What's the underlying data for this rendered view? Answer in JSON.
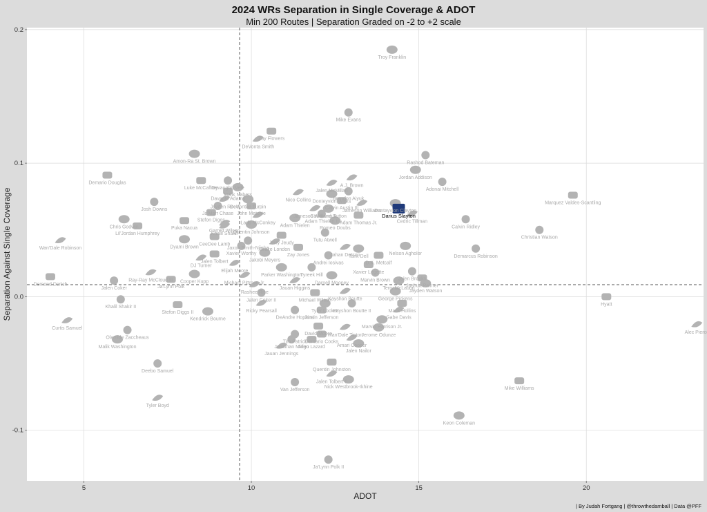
{
  "chart_data": {
    "type": "scatter",
    "title": "2024 WRs Separation in Single Coverage & ADOT",
    "subtitle": "Min 200 Routes | Separation Graded on -2 to +2 scale",
    "xlabel": "ADOT",
    "ylabel": "Separation Against Single Coverage",
    "caption": "| By Judah Fortgang | @throwthedamball | Data @PFF",
    "xlim": [
      3.3,
      23.5
    ],
    "ylim": [
      -0.138,
      0.2015
    ],
    "x_ticks": [
      {
        "value": 5,
        "label": "5"
      },
      {
        "value": 10,
        "label": "10"
      },
      {
        "value": 15,
        "label": "15"
      },
      {
        "value": 20,
        "label": "20"
      }
    ],
    "y_ticks": [
      {
        "value": 0.2,
        "label": "0.2"
      },
      {
        "value": 0.1,
        "label": "0.1"
      },
      {
        "value": 0.0,
        "label": "0.0"
      },
      {
        "value": -0.1,
        "label": "-0.1"
      }
    ],
    "reference_lines": {
      "x": 9.65,
      "y": 0.009
    },
    "grid": true,
    "colors": {
      "point": "#b3b3b3",
      "label": "#a9a9a9",
      "highlight": "#1f3a7a",
      "highlight_label": "#000000"
    },
    "points": [
      {
        "name": "Troy Franklin",
        "x": 14.2,
        "y": 0.185
      },
      {
        "name": "Mike Evans",
        "x": 12.9,
        "y": 0.138
      },
      {
        "name": "Zay Flowers",
        "x": 10.6,
        "y": 0.124
      },
      {
        "name": "DeVonta Smith",
        "x": 10.2,
        "y": 0.118
      },
      {
        "name": "Amon-Ra St. Brown",
        "x": 8.3,
        "y": 0.107
      },
      {
        "name": "Rashod Bateman",
        "x": 15.2,
        "y": 0.106
      },
      {
        "name": "Demario Douglas",
        "x": 5.7,
        "y": 0.091
      },
      {
        "name": "A.J. Brown",
        "x": 13.0,
        "y": 0.089
      },
      {
        "name": "Jordan Addison",
        "x": 14.9,
        "y": 0.095
      },
      {
        "name": "Devaughn Vele",
        "x": 9.3,
        "y": 0.087
      },
      {
        "name": "Luke McCaffrey",
        "x": 8.5,
        "y": 0.087
      },
      {
        "name": "Jalen McMillan",
        "x": 12.4,
        "y": 0.085
      },
      {
        "name": "Malik Nabers",
        "x": 9.6,
        "y": 0.082
      },
      {
        "name": "Adonai Mitchell",
        "x": 15.7,
        "y": 0.086
      },
      {
        "name": "Davante Adams",
        "x": 9.3,
        "y": 0.079
      },
      {
        "name": "Nico Collins",
        "x": 11.4,
        "y": 0.078
      },
      {
        "name": "Donteyvion Wicks",
        "x": 12.4,
        "y": 0.077
      },
      {
        "name": "Brandon Aiyuk",
        "x": 12.9,
        "y": 0.079
      },
      {
        "name": "Marquez Valdes-Scantling",
        "x": 19.6,
        "y": 0.076
      },
      {
        "name": "Jayden Reed",
        "x": 9.2,
        "y": 0.073
      },
      {
        "name": "DeVontae Turpin",
        "x": 9.9,
        "y": 0.073
      },
      {
        "name": "Josh Downs",
        "x": 7.1,
        "y": 0.071
      },
      {
        "name": "Calvin Austin III",
        "x": 12.7,
        "y": 0.072
      },
      {
        "name": "Jameson Williams",
        "x": 13.3,
        "y": 0.07
      },
      {
        "name": "Dontayvion Clayton",
        "x": 14.3,
        "y": 0.07
      },
      {
        "name": "Ja'Marr Chase",
        "x": 9.0,
        "y": 0.068
      },
      {
        "name": "John Metchie",
        "x": 10.0,
        "y": 0.068
      },
      {
        "name": "Jameson Williams II",
        "x": 11.9,
        "y": 0.066
      },
      {
        "name": "Courtland Sutton",
        "x": 12.3,
        "y": 0.066
      },
      {
        "name": "Darius Slayton",
        "x": 14.4,
        "y": 0.066,
        "highlight": true
      },
      {
        "name": "Stefon Diggs",
        "x": 8.8,
        "y": 0.063
      },
      {
        "name": "Ladd McConkey",
        "x": 10.2,
        "y": 0.061
      },
      {
        "name": "Adam Thielen",
        "x": 11.3,
        "y": 0.059
      },
      {
        "name": "Adam Thielen II",
        "x": 12.1,
        "y": 0.062
      },
      {
        "name": "Adam Thomas Jr.",
        "x": 13.2,
        "y": 0.061
      },
      {
        "name": "Cedric Tillman",
        "x": 14.8,
        "y": 0.062
      },
      {
        "name": "Chris Godwin",
        "x": 6.2,
        "y": 0.058
      },
      {
        "name": "Calvin Ridley",
        "x": 16.4,
        "y": 0.058
      },
      {
        "name": "Puka Nacua",
        "x": 8.0,
        "y": 0.057
      },
      {
        "name": "Garrett Wilson",
        "x": 9.2,
        "y": 0.055
      },
      {
        "name": "Romeo Doubs",
        "x": 12.5,
        "y": 0.057
      },
      {
        "name": "Christian Watson",
        "x": 18.6,
        "y": 0.05
      },
      {
        "name": "Lil'Jordan Humphrey",
        "x": 6.6,
        "y": 0.053
      },
      {
        "name": "Khalil Shakir",
        "x": 9.2,
        "y": 0.053
      },
      {
        "name": "Quentin Johnson",
        "x": 10.0,
        "y": 0.054
      },
      {
        "name": "Tutu Atwell",
        "x": 12.2,
        "y": 0.048
      },
      {
        "name": "CeeDee Lamb",
        "x": 8.9,
        "y": 0.045
      },
      {
        "name": "Wan'Dale Robinson",
        "x": 4.3,
        "y": 0.042
      },
      {
        "name": "Dyami Brown",
        "x": 8.0,
        "y": 0.043
      },
      {
        "name": "Jaxon Smith-Njigba",
        "x": 9.9,
        "y": 0.042
      },
      {
        "name": "Jerry Jeudy",
        "x": 10.9,
        "y": 0.046
      },
      {
        "name": "Drake London",
        "x": 10.7,
        "y": 0.041
      },
      {
        "name": "Nelson Agholor",
        "x": 14.6,
        "y": 0.038
      },
      {
        "name": "Xavier Worthy",
        "x": 9.7,
        "y": 0.038
      },
      {
        "name": "Zay Jones",
        "x": 11.4,
        "y": 0.037
      },
      {
        "name": "Jahan Dotson",
        "x": 12.8,
        "y": 0.037
      },
      {
        "name": "Tank Dell",
        "x": 13.2,
        "y": 0.036
      },
      {
        "name": "Demarcus Robinson",
        "x": 16.7,
        "y": 0.036
      },
      {
        "name": "Jalen Tolbert",
        "x": 8.9,
        "y": 0.032
      },
      {
        "name": "DJ Turner",
        "x": 8.5,
        "y": 0.029
      },
      {
        "name": "Jakobi Meyers",
        "x": 10.4,
        "y": 0.033
      },
      {
        "name": "Andrei Iosivas",
        "x": 12.3,
        "y": 0.031
      },
      {
        "name": "D.K. Metcalf",
        "x": 13.8,
        "y": 0.031
      },
      {
        "name": "Elijah Moore",
        "x": 9.5,
        "y": 0.025
      },
      {
        "name": "Parker Washington",
        "x": 10.9,
        "y": 0.022
      },
      {
        "name": "Tyreek Hill",
        "x": 11.8,
        "y": 0.022
      },
      {
        "name": "Xavier Legette",
        "x": 13.5,
        "y": 0.024
      },
      {
        "name": "Ray-Ray McCloud III",
        "x": 7.0,
        "y": 0.018
      },
      {
        "name": "Cooper Kupp",
        "x": 8.3,
        "y": 0.017
      },
      {
        "name": "Jalen Brooks",
        "x": 14.8,
        "y": 0.019
      },
      {
        "name": "Demond Dortch",
        "x": 4.0,
        "y": 0.015
      },
      {
        "name": "Michael Pittman Jr.",
        "x": 9.8,
        "y": 0.016
      },
      {
        "name": "Darnell Mooney",
        "x": 12.4,
        "y": 0.016
      },
      {
        "name": "Marvin Brown",
        "x": 13.7,
        "y": 0.018
      },
      {
        "name": "Joshua Palmer",
        "x": 15.1,
        "y": 0.014
      },
      {
        "name": "Jauan Higgins",
        "x": 11.3,
        "y": 0.012
      },
      {
        "name": "Terry McLaurin",
        "x": 14.4,
        "y": 0.012
      },
      {
        "name": "Jalen Coker",
        "x": 5.9,
        "y": 0.012
      },
      {
        "name": "Ja'Lynn Polk",
        "x": 7.6,
        "y": 0.013
      },
      {
        "name": "Rashee Rice",
        "x": 10.1,
        "y": 0.009
      },
      {
        "name": "Jayden Watson",
        "x": 15.2,
        "y": 0.01
      },
      {
        "name": "Jalen Coker II",
        "x": 10.3,
        "y": 0.003
      },
      {
        "name": "Michael Wilson",
        "x": 11.9,
        "y": 0.003
      },
      {
        "name": "Kayshon Boutte",
        "x": 12.8,
        "y": 0.004
      },
      {
        "name": "George Pickens",
        "x": 14.3,
        "y": 0.004
      },
      {
        "name": "Khalil Shakir II",
        "x": 6.1,
        "y": -0.002
      },
      {
        "name": "Stefon Diggs II",
        "x": 7.8,
        "y": -0.006
      },
      {
        "name": "Ricky Pearsall",
        "x": 10.3,
        "y": -0.005
      },
      {
        "name": "Tyler Lockett",
        "x": 12.2,
        "y": -0.005
      },
      {
        "name": "Kayshon Boutte II",
        "x": 13.0,
        "y": -0.005
      },
      {
        "name": "Mack Hollins",
        "x": 14.5,
        "y": -0.005
      },
      {
        "name": "Gabe Davis",
        "x": 14.4,
        "y": -0.01
      },
      {
        "name": "Kendrick Bourne",
        "x": 8.7,
        "y": -0.011
      },
      {
        "name": "DeAndre Hopkins",
        "x": 11.3,
        "y": -0.01
      },
      {
        "name": "Justin Jefferson",
        "x": 12.1,
        "y": -0.01
      },
      {
        "name": "Curtis Samuel",
        "x": 4.5,
        "y": -0.018
      },
      {
        "name": "Marvin Harrison Jr.",
        "x": 13.9,
        "y": -0.017
      },
      {
        "name": "Olamide Zaccheaus",
        "x": 6.3,
        "y": -0.025
      },
      {
        "name": "David Moore",
        "x": 12.0,
        "y": -0.022
      },
      {
        "name": "Wan'Dale Tipton",
        "x": 12.8,
        "y": -0.023
      },
      {
        "name": "Jerome Odunze",
        "x": 13.8,
        "y": -0.023
      },
      {
        "name": "Tim Patrick",
        "x": 11.3,
        "y": -0.028
      },
      {
        "name": "Demario Cooks",
        "x": 12.1,
        "y": -0.028
      },
      {
        "name": "Amari Cooper",
        "x": 13.0,
        "y": -0.031
      },
      {
        "name": "Malik Washington",
        "x": 6.0,
        "y": -0.032
      },
      {
        "name": "Jonathan Mingo",
        "x": 11.2,
        "y": -0.032
      },
      {
        "name": "Allen Lazard",
        "x": 11.8,
        "y": -0.032
      },
      {
        "name": "Jauan Jennings",
        "x": 10.9,
        "y": -0.037
      },
      {
        "name": "Jalen Nailor",
        "x": 13.2,
        "y": -0.035
      },
      {
        "name": "Deebo Samuel",
        "x": 7.2,
        "y": -0.05
      },
      {
        "name": "Quentin Johnston",
        "x": 12.4,
        "y": -0.049
      },
      {
        "name": "Jalen Tolbert II",
        "x": 12.4,
        "y": -0.058
      },
      {
        "name": "Nick Westbrook-Ikhine",
        "x": 12.9,
        "y": -0.062
      },
      {
        "name": "Van Jefferson",
        "x": 11.3,
        "y": -0.064
      },
      {
        "name": "Mike Williams",
        "x": 18.0,
        "y": -0.063
      },
      {
        "name": "Tyler Boyd",
        "x": 7.2,
        "y": -0.076
      },
      {
        "name": "Keon Coleman",
        "x": 16.2,
        "y": -0.089
      },
      {
        "name": "Ja'Lynn Polk II",
        "x": 12.3,
        "y": -0.122
      },
      {
        "name": "Hyatt",
        "x": 20.6,
        "y": 0.0
      },
      {
        "name": "Alec Pierce",
        "x": 23.3,
        "y": -0.021
      }
    ]
  }
}
